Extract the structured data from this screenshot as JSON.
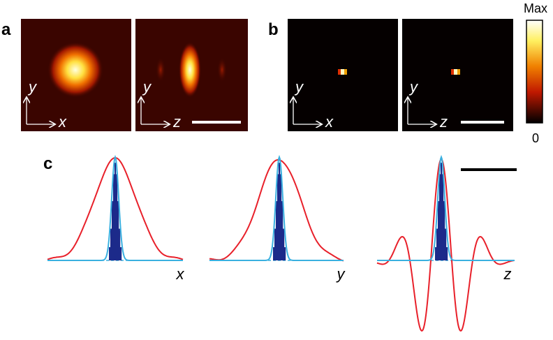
{
  "panel_a": {
    "label": "a",
    "images": [
      {
        "axis_v": "y",
        "axis_h": "x"
      },
      {
        "axis_v": "y",
        "axis_h": "z"
      }
    ]
  },
  "panel_b": {
    "label": "b",
    "images": [
      {
        "axis_v": "y",
        "axis_h": "x"
      },
      {
        "axis_v": "y",
        "axis_h": "z"
      }
    ]
  },
  "colorbar": {
    "max_label": "Max",
    "min_label": "0"
  },
  "panel_c": {
    "label": "c",
    "plots": [
      {
        "axis": "x"
      },
      {
        "axis": "y"
      },
      {
        "axis": "z"
      }
    ]
  }
}
